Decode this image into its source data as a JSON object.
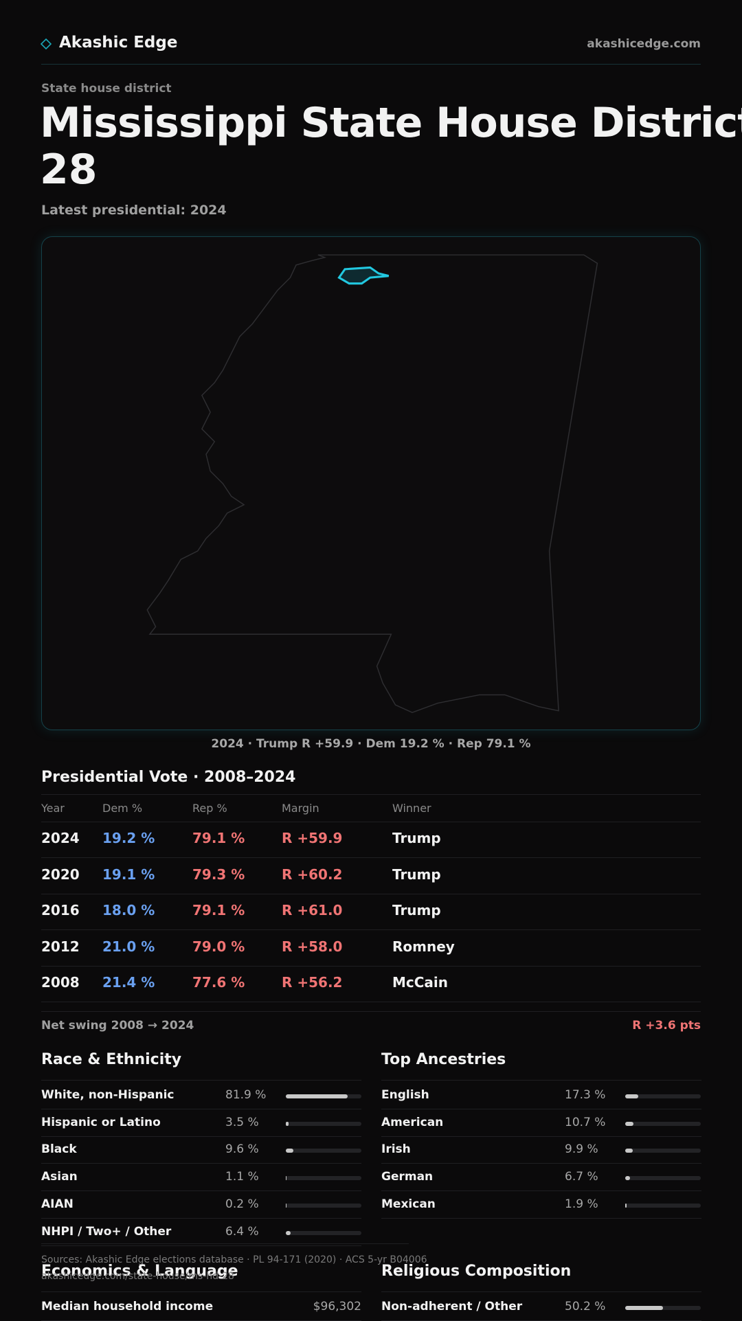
{
  "header": {
    "brand": "Akashic Edge",
    "site": "akashicedge.com"
  },
  "page": {
    "eyebrow": "State house district",
    "title_line1": "Mississippi State House District",
    "title_line2": "28",
    "subtitle": "Latest presidential: 2024"
  },
  "map": {
    "caption": "2024 · Trump R +59.9 · Dem 19.2 % · Rep 79.1 %"
  },
  "table": {
    "title": "Presidential Vote · 2008–2024",
    "columns": [
      "Year",
      "Dem %",
      "Rep %",
      "Margin",
      "Winner"
    ],
    "rows": [
      [
        "2024",
        "19.2 %",
        "79.1 %",
        "R +59.9",
        "Trump"
      ],
      [
        "2020",
        "19.1 %",
        "79.3 %",
        "R +60.2",
        "Trump"
      ],
      [
        "2016",
        "18.0 %",
        "79.1 %",
        "R +61.0",
        "Trump"
      ],
      [
        "2012",
        "21.0 %",
        "79.0 %",
        "R +58.0",
        "Romney"
      ],
      [
        "2008",
        "21.4 %",
        "77.6 %",
        "R +56.2",
        "McCain"
      ]
    ]
  },
  "swing": {
    "label": "Net swing 2008 → 2024",
    "value": "R +3.6 pts"
  },
  "race": {
    "title": "Race & Ethnicity",
    "rows": [
      {
        "label": "White, non-Hispanic",
        "value": 81.9,
        "value_label": "81.9 %"
      },
      {
        "label": "Hispanic or Latino",
        "value": 3.5,
        "value_label": "3.5 %"
      },
      {
        "label": "Black",
        "value": 9.6,
        "value_label": "9.6 %"
      },
      {
        "label": "Asian",
        "value": 1.1,
        "value_label": "1.1 %"
      },
      {
        "label": "AIAN",
        "value": 0.2,
        "value_label": "0.2 %"
      },
      {
        "label": "NHPI / Two+ / Other",
        "value": 6.4,
        "value_label": "6.4 %"
      }
    ]
  },
  "ancestry": {
    "title": "Top Ancestries",
    "rows": [
      {
        "label": "English",
        "value": 17.3,
        "value_label": "17.3 %"
      },
      {
        "label": "American",
        "value": 10.7,
        "value_label": "10.7 %"
      },
      {
        "label": "Irish",
        "value": 9.9,
        "value_label": "9.9 %"
      },
      {
        "label": "German",
        "value": 6.7,
        "value_label": "6.7 %"
      },
      {
        "label": "Mexican",
        "value": 1.9,
        "value_label": "1.9 %"
      }
    ]
  },
  "footer": {
    "sources": "Sources: Akashic Edge elections database · PL 94-171 (2020) · ACS 5-yr B04006",
    "url": "akashicedge.com/state-house/ms-hd-28"
  },
  "economics": {
    "title": "Economics & Language",
    "rows": [
      {
        "label": "Median household income",
        "value": "$96,302"
      }
    ]
  },
  "religion": {
    "title": "Religious Composition",
    "rows": [
      {
        "label": "Non-adherent / Other",
        "value": 50.2,
        "value_label": "50.2 %"
      }
    ]
  }
}
